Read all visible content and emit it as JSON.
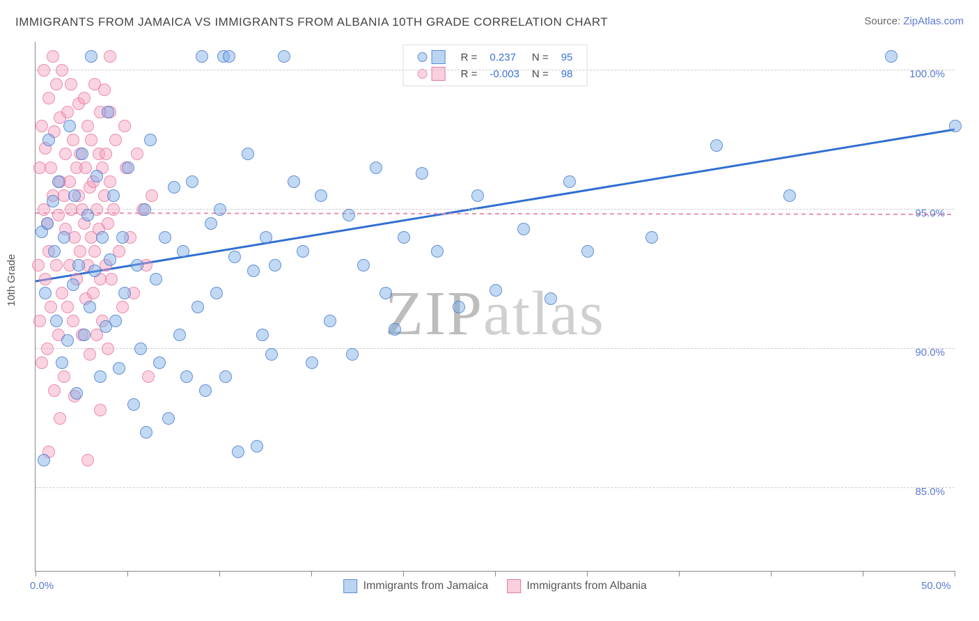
{
  "title": "IMMIGRANTS FROM JAMAICA VS IMMIGRANTS FROM ALBANIA 10TH GRADE CORRELATION CHART",
  "source_label": "Source: ",
  "source_name": "ZipAtlas.com",
  "ylabel": "10th Grade",
  "watermark_a": "ZIP",
  "watermark_b": "atlas",
  "chart": {
    "type": "scatter",
    "xlim": [
      0,
      50
    ],
    "ylim": [
      82,
      101
    ],
    "yticks": [
      85.0,
      90.0,
      95.0,
      100.0
    ],
    "ytick_labels": [
      "85.0%",
      "90.0%",
      "95.0%",
      "100.0%"
    ],
    "xticks": [
      0,
      5,
      10,
      15,
      20,
      25,
      30,
      35,
      40,
      45,
      50
    ],
    "xtick_labels": {
      "0": "0.0%",
      "50": "50.0%"
    },
    "grid_color": "#cccccc",
    "background": "#ffffff",
    "series": [
      {
        "id": "series-jamaica",
        "name": "Immigrants from Jamaica",
        "color_fill": "rgba(120,170,230,0.45)",
        "color_stroke": "rgba(60,110,200,0.7)",
        "r": 0.237,
        "r_label": "0.237",
        "n": 95,
        "trend": {
          "slope": 0.109,
          "intercept": 92.4,
          "color": "#2f6fd0",
          "dash": "none",
          "width": 3
        },
        "points": [
          [
            0.3,
            94.2
          ],
          [
            0.4,
            86.0
          ],
          [
            0.5,
            92.0
          ],
          [
            0.6,
            94.5
          ],
          [
            0.7,
            97.5
          ],
          [
            0.9,
            95.3
          ],
          [
            1.0,
            93.5
          ],
          [
            1.1,
            91.0
          ],
          [
            1.2,
            96.0
          ],
          [
            1.4,
            89.5
          ],
          [
            1.5,
            94.0
          ],
          [
            1.7,
            90.3
          ],
          [
            1.8,
            98.0
          ],
          [
            2.0,
            92.3
          ],
          [
            2.1,
            95.5
          ],
          [
            2.2,
            88.4
          ],
          [
            2.3,
            93.0
          ],
          [
            2.5,
            97.0
          ],
          [
            2.6,
            90.5
          ],
          [
            2.8,
            94.8
          ],
          [
            2.9,
            91.5
          ],
          [
            3.0,
            100.5
          ],
          [
            3.2,
            92.8
          ],
          [
            3.3,
            96.2
          ],
          [
            3.5,
            89.0
          ],
          [
            3.6,
            94.0
          ],
          [
            3.8,
            90.8
          ],
          [
            3.9,
            98.5
          ],
          [
            4.0,
            93.2
          ],
          [
            4.2,
            95.5
          ],
          [
            4.3,
            91.0
          ],
          [
            4.5,
            89.3
          ],
          [
            4.7,
            94.0
          ],
          [
            4.8,
            92.0
          ],
          [
            5.0,
            96.5
          ],
          [
            5.3,
            88.0
          ],
          [
            5.5,
            93.0
          ],
          [
            5.7,
            90.0
          ],
          [
            5.9,
            95.0
          ],
          [
            6.0,
            87.0
          ],
          [
            6.2,
            97.5
          ],
          [
            6.5,
            92.5
          ],
          [
            6.7,
            89.5
          ],
          [
            7.0,
            94.0
          ],
          [
            7.2,
            87.5
          ],
          [
            7.5,
            95.8
          ],
          [
            7.8,
            90.5
          ],
          [
            8.0,
            93.5
          ],
          [
            8.2,
            89.0
          ],
          [
            8.5,
            96.0
          ],
          [
            8.8,
            91.5
          ],
          [
            9.0,
            100.5
          ],
          [
            9.2,
            88.5
          ],
          [
            9.5,
            94.5
          ],
          [
            9.8,
            92.0
          ],
          [
            10.0,
            95.0
          ],
          [
            10.2,
            100.5
          ],
          [
            10.3,
            89.0
          ],
          [
            10.5,
            100.5
          ],
          [
            10.8,
            93.3
          ],
          [
            11.0,
            86.3
          ],
          [
            11.5,
            97.0
          ],
          [
            11.8,
            92.8
          ],
          [
            12.0,
            86.5
          ],
          [
            12.3,
            90.5
          ],
          [
            12.5,
            94.0
          ],
          [
            12.8,
            89.8
          ],
          [
            13.0,
            93.0
          ],
          [
            13.5,
            100.5
          ],
          [
            14.0,
            96.0
          ],
          [
            14.5,
            93.5
          ],
          [
            15.0,
            89.5
          ],
          [
            15.5,
            95.5
          ],
          [
            16.0,
            91.0
          ],
          [
            17.0,
            94.8
          ],
          [
            17.2,
            89.8
          ],
          [
            17.8,
            93.0
          ],
          [
            18.5,
            96.5
          ],
          [
            19.0,
            92.0
          ],
          [
            19.5,
            90.7
          ],
          [
            20.0,
            94.0
          ],
          [
            21.0,
            96.3
          ],
          [
            21.8,
            93.5
          ],
          [
            23.0,
            91.5
          ],
          [
            24.0,
            95.5
          ],
          [
            25.0,
            92.1
          ],
          [
            26.5,
            94.3
          ],
          [
            28.0,
            91.8
          ],
          [
            29.0,
            96.0
          ],
          [
            30.0,
            93.5
          ],
          [
            33.5,
            94.0
          ],
          [
            37.0,
            97.3
          ],
          [
            41.0,
            95.5
          ],
          [
            46.5,
            100.5
          ],
          [
            50.0,
            98.0
          ]
        ]
      },
      {
        "id": "series-albania",
        "name": "Immigrants from Albania",
        "color_fill": "rgba(245,160,190,0.45)",
        "color_stroke": "rgba(230,110,150,0.7)",
        "r": -0.003,
        "r_label": "-0.003",
        "n": 98,
        "trend": {
          "slope": -0.001,
          "intercept": 94.85,
          "color": "#e890b0",
          "dash": "6,5",
          "width": 2
        },
        "points": [
          [
            0.1,
            93.0
          ],
          [
            0.2,
            96.5
          ],
          [
            0.2,
            91.0
          ],
          [
            0.3,
            98.0
          ],
          [
            0.3,
            89.5
          ],
          [
            0.4,
            95.0
          ],
          [
            0.4,
            100.0
          ],
          [
            0.5,
            92.5
          ],
          [
            0.5,
            97.2
          ],
          [
            0.6,
            90.0
          ],
          [
            0.6,
            94.5
          ],
          [
            0.7,
            99.0
          ],
          [
            0.7,
            93.5
          ],
          [
            0.8,
            96.5
          ],
          [
            0.8,
            91.5
          ],
          [
            0.9,
            100.5
          ],
          [
            0.9,
            95.5
          ],
          [
            1.0,
            88.5
          ],
          [
            1.0,
            97.8
          ],
          [
            1.1,
            93.0
          ],
          [
            1.1,
            99.5
          ],
          [
            1.2,
            94.8
          ],
          [
            1.2,
            90.5
          ],
          [
            1.3,
            96.0
          ],
          [
            1.3,
            98.3
          ],
          [
            1.4,
            92.0
          ],
          [
            1.4,
            100.0
          ],
          [
            1.5,
            95.5
          ],
          [
            1.5,
            89.0
          ],
          [
            1.6,
            97.0
          ],
          [
            1.6,
            94.3
          ],
          [
            1.7,
            91.5
          ],
          [
            1.7,
            98.5
          ],
          [
            1.8,
            96.0
          ],
          [
            1.8,
            93.0
          ],
          [
            1.9,
            99.5
          ],
          [
            1.9,
            95.0
          ],
          [
            2.0,
            91.0
          ],
          [
            2.0,
            97.5
          ],
          [
            2.1,
            94.0
          ],
          [
            2.1,
            88.3
          ],
          [
            2.2,
            96.5
          ],
          [
            2.2,
            92.5
          ],
          [
            2.3,
            98.8
          ],
          [
            2.3,
            95.5
          ],
          [
            2.4,
            93.5
          ],
          [
            2.4,
            97.0
          ],
          [
            2.5,
            90.5
          ],
          [
            2.5,
            95.0
          ],
          [
            2.6,
            99.0
          ],
          [
            2.6,
            94.5
          ],
          [
            2.7,
            91.8
          ],
          [
            2.7,
            96.5
          ],
          [
            2.8,
            93.0
          ],
          [
            2.8,
            98.0
          ],
          [
            2.9,
            95.8
          ],
          [
            2.9,
            89.8
          ],
          [
            3.0,
            94.0
          ],
          [
            3.0,
            97.5
          ],
          [
            3.1,
            92.0
          ],
          [
            3.1,
            96.0
          ],
          [
            3.2,
            99.5
          ],
          [
            3.2,
            93.5
          ],
          [
            3.3,
            95.0
          ],
          [
            3.3,
            90.5
          ],
          [
            3.4,
            97.0
          ],
          [
            3.4,
            94.3
          ],
          [
            3.5,
            98.5
          ],
          [
            3.5,
            92.5
          ],
          [
            3.6,
            96.5
          ],
          [
            3.6,
            91.0
          ],
          [
            3.7,
            95.5
          ],
          [
            3.7,
            99.3
          ],
          [
            3.8,
            93.0
          ],
          [
            3.8,
            97.0
          ],
          [
            3.9,
            94.5
          ],
          [
            3.9,
            90.0
          ],
          [
            4.0,
            96.0
          ],
          [
            4.0,
            98.5
          ],
          [
            4.1,
            92.5
          ],
          [
            4.2,
            95.0
          ],
          [
            4.3,
            97.5
          ],
          [
            4.5,
            93.5
          ],
          [
            4.7,
            91.5
          ],
          [
            4.9,
            96.5
          ],
          [
            5.1,
            94.0
          ],
          [
            5.3,
            92.0
          ],
          [
            5.5,
            97.0
          ],
          [
            5.8,
            95.0
          ],
          [
            6.0,
            93.0
          ],
          [
            6.1,
            89.0
          ],
          [
            6.3,
            95.5
          ],
          [
            0.7,
            86.3
          ],
          [
            1.3,
            87.5
          ],
          [
            2.8,
            86.0
          ],
          [
            3.5,
            87.8
          ],
          [
            4.0,
            100.5
          ],
          [
            4.8,
            98.0
          ]
        ]
      }
    ]
  },
  "legend_top": {
    "r_prefix": "R =",
    "n_prefix": "N ="
  }
}
